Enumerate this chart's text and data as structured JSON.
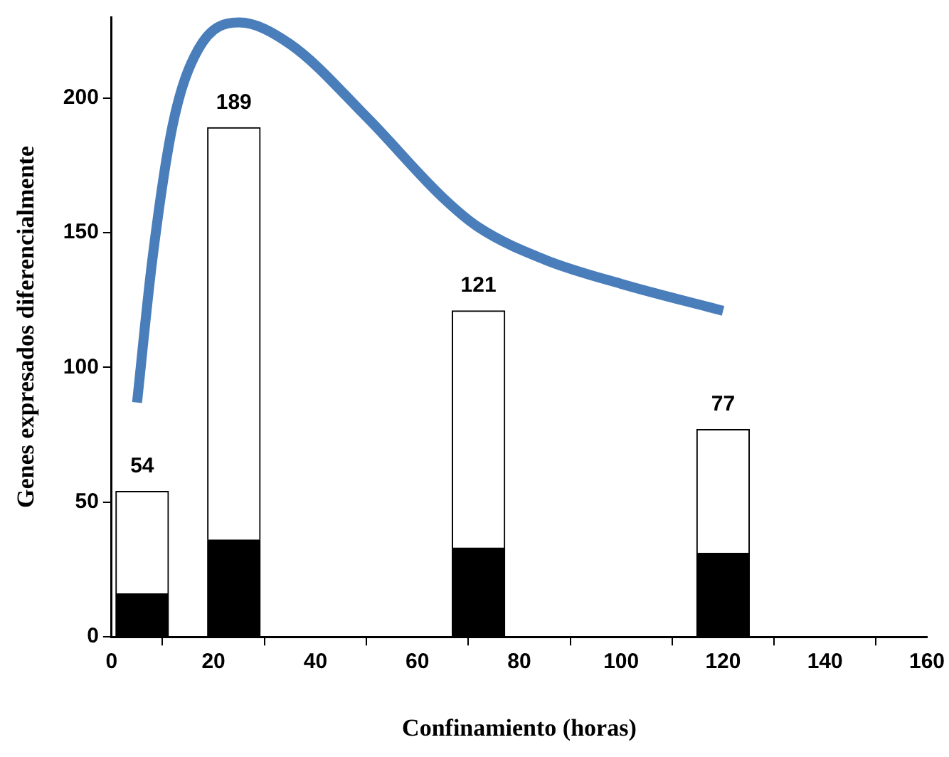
{
  "chart_data": {
    "type": "bar",
    "xlabel": "Confinamiento (horas)",
    "ylabel": "Genes expresados diferencialmente",
    "stacked": true,
    "xlim": [
      0,
      160
    ],
    "xticks": [
      0,
      20,
      40,
      60,
      80,
      100,
      120,
      140,
      160
    ],
    "ylim": [
      0,
      230
    ],
    "yticks": [
      0,
      50,
      100,
      150,
      200
    ],
    "grid": false,
    "legend": false,
    "totals": [
      "54",
      "189",
      "121",
      "77"
    ],
    "series": [
      {
        "color": "#000000",
        "x": [
          6,
          24,
          72,
          120
        ],
        "values": [
          16,
          36,
          33,
          31
        ]
      },
      {
        "color": "#ffffff",
        "x": [
          6,
          24,
          72,
          120
        ],
        "values": [
          38,
          153,
          88,
          46
        ]
      },
      {
        "type": "line",
        "color": "#4a7ebb",
        "marker": "none",
        "line_style": "solid",
        "x": [
          5,
          8,
          12,
          17,
          25,
          35,
          50,
          65,
          72,
          85,
          100,
          120
        ],
        "values": [
          87,
          140,
          190,
          218,
          228,
          220,
          193,
          163,
          152,
          140,
          131,
          121
        ]
      }
    ]
  }
}
